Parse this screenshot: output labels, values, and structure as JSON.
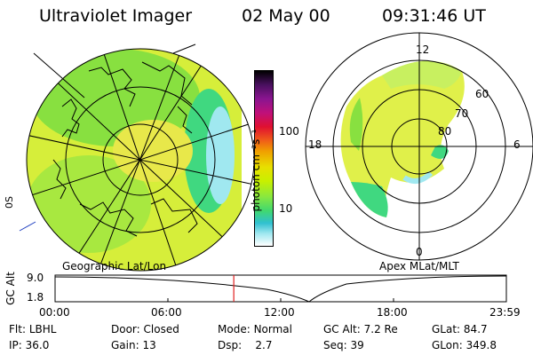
{
  "header": {
    "instrument": "Ultraviolet Imager",
    "date": "02 May 00",
    "time": "09:31:46 UT"
  },
  "left_map": {
    "label": "Geographic Lat/Lon",
    "edge_labels": [
      "0S",
      "0"
    ]
  },
  "colorbar": {
    "unit_label": "photon cm⁻²s⁻¹",
    "tick_labels": [
      "100",
      "10"
    ],
    "colors": [
      "#000000",
      "#4a1060",
      "#8a1590",
      "#c0107a",
      "#e01030",
      "#f06018",
      "#f0a000",
      "#e8e000",
      "#c8f000",
      "#88e840",
      "#40d870",
      "#30c0d0",
      "#a0e8f0",
      "#ffffff"
    ]
  },
  "right_polar": {
    "label": "Apex MLat/MLT",
    "mlt_labels": {
      "top": "12",
      "left": "18",
      "right": "6",
      "bottom": "0"
    },
    "lat_labels": [
      "60",
      "70",
      "80"
    ]
  },
  "timeline": {
    "axis_label": "GC Alt",
    "y_ticks": [
      "9.0",
      "1.8"
    ],
    "x_ticks": [
      "00:00",
      "06:00",
      "12:00",
      "18:00",
      "23:59"
    ],
    "current_time_fraction": 0.396
  },
  "status": [
    [
      {
        "key": "Flt:",
        "value": "LBHL"
      },
      {
        "key": "IP:",
        "value": "36.0"
      }
    ],
    [
      {
        "key": "Door:",
        "value": "Closed"
      },
      {
        "key": "Gain:",
        "value": "13"
      }
    ],
    [
      {
        "key": "Mode:",
        "value": "Normal"
      },
      {
        "key": "Dsp:",
        "value": "2.7"
      }
    ],
    [
      {
        "key": "GC Alt:",
        "value": "7.2 Re"
      },
      {
        "key": "Seq:",
        "value": "39"
      }
    ],
    [
      {
        "key": "GLat:",
        "value": "84.7"
      },
      {
        "key": "GLon:",
        "value": "349.8"
      }
    ]
  ]
}
